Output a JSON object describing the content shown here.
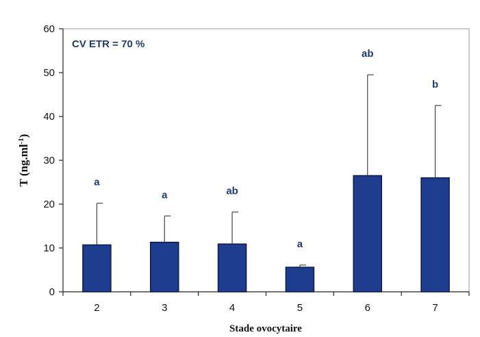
{
  "chart_data": {
    "type": "bar",
    "title": "",
    "annotation": "CV ETR = 70 %",
    "xlabel": "Stade ovocytaire",
    "ylabel": "T (ng.ml",
    "ylabel_superscript": "-1",
    "ylabel_suffix": ")",
    "categories": [
      "2",
      "3",
      "4",
      "5",
      "6",
      "7"
    ],
    "values": [
      10.7,
      11.3,
      10.9,
      5.6,
      26.5,
      26.0
    ],
    "error_upper": [
      20.2,
      17.3,
      18.2,
      6.1,
      49.5,
      42.5
    ],
    "significance": [
      "a",
      "a",
      "ab",
      "a",
      "ab",
      "b"
    ],
    "ylim": [
      0,
      60
    ],
    "yticks": [
      0,
      10,
      20,
      30,
      40,
      50,
      60
    ],
    "grid": false,
    "legend": "none",
    "colors": {
      "bar_fill": "#1e3d8f",
      "bar_stroke": "#0d1a45",
      "error_bar": "#444444",
      "label_text": "#1f3a75"
    }
  }
}
